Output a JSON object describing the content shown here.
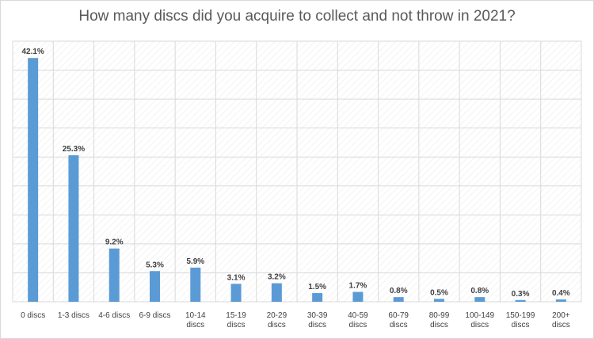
{
  "chart_data": {
    "type": "bar",
    "title": "How many discs did you acquire to collect and not throw in 2021?",
    "categories": [
      [
        "0 discs"
      ],
      [
        "1-3 discs"
      ],
      [
        "4-6 discs"
      ],
      [
        "6-9 discs"
      ],
      [
        "10-14",
        "discs"
      ],
      [
        "15-19",
        "discs"
      ],
      [
        "20-29",
        "discs"
      ],
      [
        "30-39",
        "discs"
      ],
      [
        "40-59",
        "discs"
      ],
      [
        "60-79",
        "discs"
      ],
      [
        "80-99",
        "discs"
      ],
      [
        "100-149",
        "discs"
      ],
      [
        "150-199",
        "discs"
      ],
      [
        "200+",
        "discs"
      ]
    ],
    "values": [
      42.1,
      25.3,
      9.2,
      5.3,
      5.9,
      3.1,
      3.2,
      1.5,
      1.7,
      0.8,
      0.5,
      0.8,
      0.3,
      0.4
    ],
    "data_labels": [
      "42.1%",
      "25.3%",
      "9.2%",
      "5.3%",
      "5.9%",
      "3.1%",
      "3.2%",
      "1.5%",
      "1.7%",
      "0.8%",
      "0.5%",
      "0.8%",
      "0.3%",
      "0.4%"
    ],
    "xlabel": "",
    "ylabel": "",
    "ylim": [
      0,
      45
    ],
    "grid": true,
    "bar_color": "#5b9bd5",
    "grid_color": "#d9d9d9",
    "label_color": "#404040"
  }
}
